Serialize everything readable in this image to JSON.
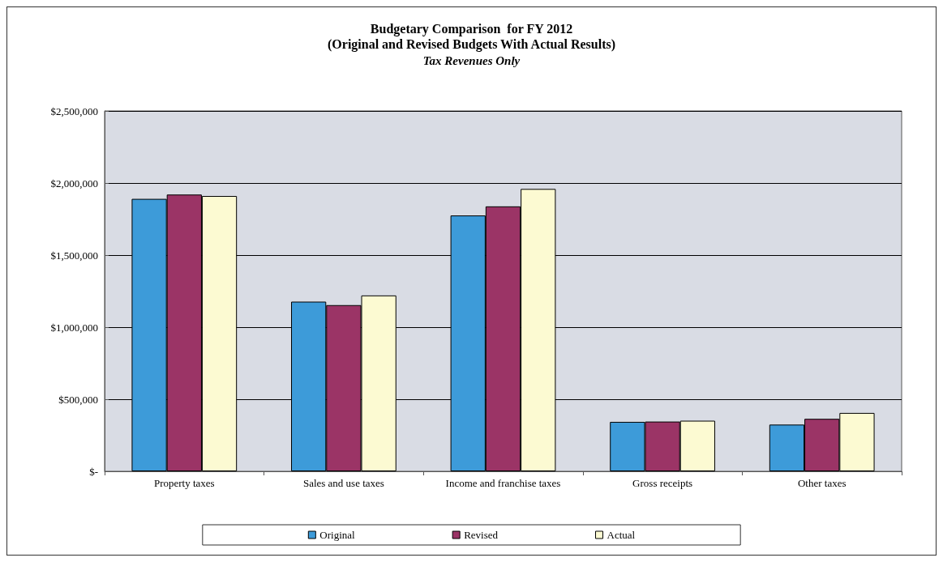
{
  "chart_data": {
    "type": "bar",
    "title": "Budgetary Comparison  for FY 2012\n(Original and Revised Budgets With Actual Results)",
    "subtitle": "Tax Revenues Only",
    "categories": [
      "Property taxes",
      "Sales and use taxes",
      "Income and franchise taxes",
      "Gross receipts",
      "Other taxes"
    ],
    "series": [
      {
        "name": "Original",
        "color": "#3d9bd9",
        "values": [
          1890000,
          1177000,
          1775000,
          343000,
          324000
        ]
      },
      {
        "name": "Revised",
        "color": "#9b3466",
        "values": [
          1920000,
          1153000,
          1838000,
          345000,
          364000
        ]
      },
      {
        "name": "Actual",
        "color": "#fcfad2",
        "values": [
          1910000,
          1220000,
          1959000,
          351000,
          405000
        ]
      }
    ],
    "ylim": [
      0,
      2500000
    ],
    "yticks": [
      {
        "value": 0,
        "label": "$-"
      },
      {
        "value": 500000,
        "label": "$500,000"
      },
      {
        "value": 1000000,
        "label": "$1,000,000"
      },
      {
        "value": 1500000,
        "label": "$1,500,000"
      },
      {
        "value": 2000000,
        "label": "$2,000,000"
      },
      {
        "value": 2500000,
        "label": "$2,500,000"
      }
    ],
    "grid": "y",
    "legend": "bottom"
  }
}
